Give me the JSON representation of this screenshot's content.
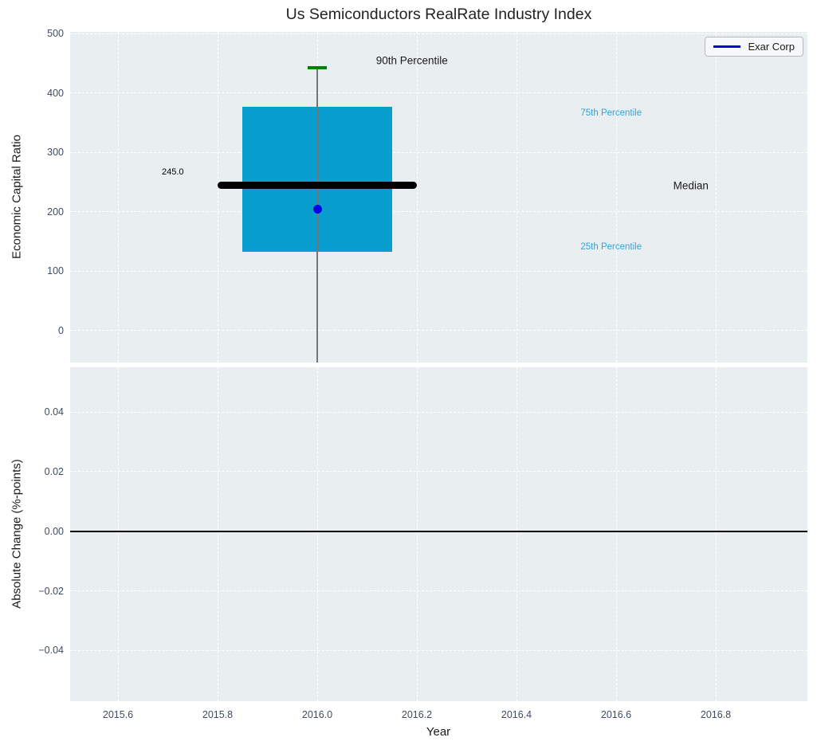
{
  "colors": {
    "panel_bg": "#e9eef1",
    "grid": "#ffffff",
    "box_fill": "#089ECE",
    "median_line": "#000000",
    "whisker": "#757575",
    "p90_cap": "#008000",
    "company_dot": "#0000e6",
    "tick_label": "#3d4c63",
    "percentile_label": "#29a8df",
    "zero_line": "#000000"
  },
  "chart_data": [
    {
      "type": "box",
      "title": "Us Semiconductors RealRate Industry Index",
      "ylabel": "Economic Capital Ratio",
      "xlabel": "",
      "xlim": [
        2015.504,
        2016.984
      ],
      "ylim": [
        -54,
        503
      ],
      "x_ticks": [
        2015.6,
        2015.8,
        2016.0,
        2016.2,
        2016.4,
        2016.6,
        2016.8
      ],
      "x_tick_labels": [
        "2015.6",
        "2015.8",
        "2016.0",
        "2016.2",
        "2016.4",
        "2016.6",
        "2016.8"
      ],
      "show_x_tick_labels": false,
      "y_ticks": [
        0,
        100,
        200,
        300,
        400,
        500
      ],
      "y_tick_labels": [
        "0",
        "100",
        "200",
        "300",
        "400",
        "500"
      ],
      "grid": true,
      "legend": {
        "label": "Exar Corp",
        "position": "upper right",
        "line_color": "#0000e6"
      },
      "box": {
        "x": 2016.0,
        "q1": 132,
        "median": 245,
        "q3": 377,
        "p90": 443,
        "whisker_low": -54,
        "box_halfwidth_years": 0.15,
        "median_halfwidth_years": 0.2,
        "cap_halfwidth_years": 0.019,
        "company": {
          "name": "Exar Corp",
          "value": 205
        }
      },
      "annotations": [
        {
          "text": "245.0",
          "x": 2015.71,
          "y": 267,
          "color": "#000000",
          "size": 11
        },
        {
          "text": "90th Percentile",
          "x": 2016.19,
          "y": 455,
          "color": "#1a1a1a",
          "size": 13.5
        },
        {
          "text": "75th Percentile",
          "x": 2016.59,
          "y": 366,
          "color": "#29a8df",
          "size": 11.5
        },
        {
          "text": "Median",
          "x": 2016.75,
          "y": 244,
          "color": "#1a1a1a",
          "size": 13.5
        },
        {
          "text": "25th Percentile",
          "x": 2016.59,
          "y": 141,
          "color": "#29a8df",
          "size": 11.5
        }
      ]
    },
    {
      "type": "line",
      "title": "",
      "ylabel": "Absolute Change (%-points)",
      "xlabel": "Year",
      "xlim": [
        2015.504,
        2016.984
      ],
      "ylim": [
        -0.057,
        0.055
      ],
      "x_ticks": [
        2015.6,
        2015.8,
        2016.0,
        2016.2,
        2016.4,
        2016.6,
        2016.8
      ],
      "x_tick_labels": [
        "2015.6",
        "2015.8",
        "2016.0",
        "2016.2",
        "2016.4",
        "2016.6",
        "2016.8"
      ],
      "show_x_tick_labels": true,
      "y_ticks": [
        -0.04,
        -0.02,
        0,
        0.02,
        0.04
      ],
      "y_tick_labels": [
        "−0.04",
        "−0.02",
        "0.00",
        "0.02",
        "0.04"
      ],
      "grid": true,
      "zero_line": 0.0,
      "series": []
    }
  ]
}
